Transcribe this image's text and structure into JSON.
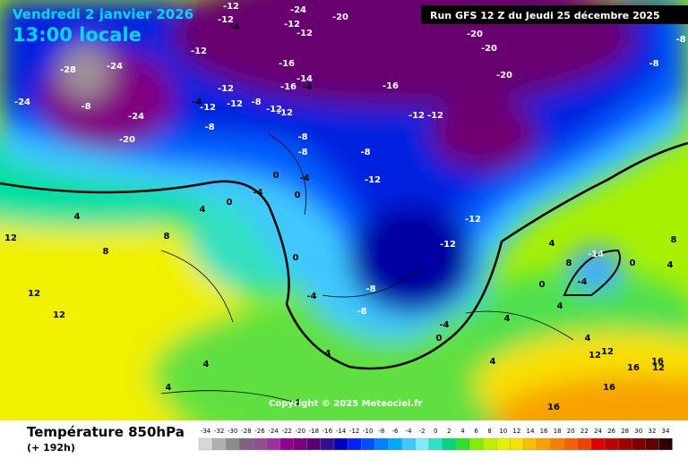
{
  "header": {
    "date": "Vendredi 2 janvier 2026",
    "time": "13:00 locale",
    "run": "Run GFS 12 Z du Jeudi 25 décembre 2025"
  },
  "copyright": "Copyright © 2025 Meteociel.fr",
  "footer": {
    "title": "Température 850hPa",
    "lead": "(+ 192h)"
  },
  "legend": {
    "ticks": [
      -34,
      -32,
      -30,
      -28,
      -26,
      -24,
      -22,
      -20,
      -18,
      -16,
      -14,
      -12,
      -10,
      -8,
      -6,
      -4,
      -2,
      0,
      2,
      4,
      6,
      8,
      10,
      12,
      14,
      16,
      18,
      20,
      22,
      24,
      26,
      28,
      30,
      32,
      34
    ],
    "colors": [
      "#d8d8d8",
      "#b0b0b0",
      "#8c8c8c",
      "#806080",
      "#905090",
      "#a030a0",
      "#900090",
      "#780078",
      "#5a0070",
      "#301090",
      "#0000c0",
      "#0020ff",
      "#0050ff",
      "#0080ff",
      "#00a8ff",
      "#40c8ff",
      "#80e8ff",
      "#30e0c0",
      "#00d880",
      "#30e030",
      "#80f000",
      "#c0f000",
      "#e8f000",
      "#f8e000",
      "#f8c000",
      "#f8a000",
      "#f88000",
      "#f86000",
      "#f04000",
      "#e00000",
      "#c00000",
      "#a00000",
      "#800000",
      "#600000",
      "#300000"
    ]
  },
  "map": {
    "labels": [
      -12,
      -24,
      -20,
      -12,
      -12,
      -4,
      -12,
      -20,
      -20,
      -12,
      -8,
      -28,
      -24,
      -16,
      -8,
      -20,
      -14,
      -16,
      -4,
      -16,
      -12,
      -24,
      -8,
      -4,
      -12,
      -12,
      -8,
      -12,
      -24,
      -12,
      -12,
      -8,
      -20,
      -8,
      -12,
      -8,
      -8,
      0,
      -4,
      -12,
      -4,
      0,
      0,
      4,
      4,
      -12,
      12,
      8,
      8,
      -12,
      4,
      8,
      0,
      -14,
      8,
      0,
      4,
      12,
      -4,
      -8,
      -4,
      0,
      4,
      12,
      -8,
      -4,
      0,
      4,
      4,
      4,
      12,
      12,
      4,
      4,
      16,
      12,
      16,
      4,
      16,
      4,
      16
    ]
  }
}
